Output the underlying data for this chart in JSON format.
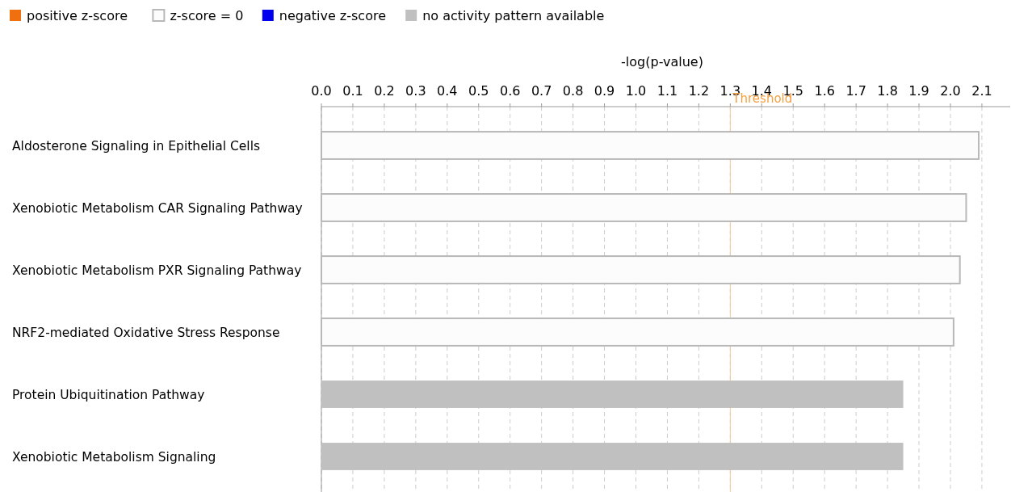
{
  "chart_data": {
    "type": "bar",
    "orientation": "horizontal",
    "xlabel": "-log(p-value)",
    "categories": [
      "Aldosterone Signaling in Epithelial Cells",
      "Xenobiotic Metabolism CAR Signaling Pathway",
      "Xenobiotic Metabolism PXR Signaling Pathway",
      "NRF2-mediated Oxidative Stress Response",
      "Protein Ubiquitination Pathway",
      "Xenobiotic Metabolism Signaling"
    ],
    "series": [
      {
        "name": "positive z-score",
        "color": "#f07010",
        "values": [
          null,
          null,
          null,
          null,
          null,
          null
        ]
      },
      {
        "name": "z-score = 0",
        "color": "#fcfcfc",
        "values": [
          2.09,
          2.05,
          2.03,
          2.01,
          null,
          null
        ]
      },
      {
        "name": "negative z-score",
        "color": "#0000ee",
        "values": [
          null,
          null,
          null,
          null,
          null,
          null
        ]
      },
      {
        "name": "no activity pattern available",
        "color": "#c0c0c0",
        "values": [
          null,
          null,
          null,
          null,
          1.85,
          1.85
        ]
      }
    ],
    "xlim": [
      0,
      2.19
    ],
    "xticks": [
      {
        "value": 0,
        "label": "0.0"
      },
      0.1,
      0.2,
      0.3,
      0.4,
      0.5,
      0.6,
      0.7,
      0.8,
      0.9,
      {
        "value": 1,
        "label": "1.0"
      },
      1.1,
      1.2,
      1.3,
      1.4,
      1.5,
      1.6,
      1.7,
      1.8,
      1.9,
      {
        "value": 2,
        "label": "2.0"
      },
      2.1
    ],
    "grid": "x",
    "legend": "top left",
    "ref_lines": [
      {
        "axis": "x",
        "value": 1.3,
        "label": "Threshold",
        "color": "#f5c89a"
      }
    ]
  }
}
